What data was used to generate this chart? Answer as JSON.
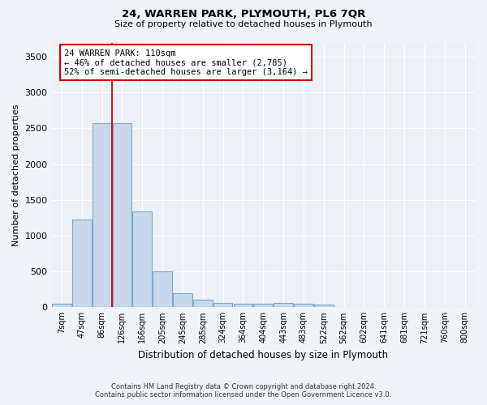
{
  "title": "24, WARREN PARK, PLYMOUTH, PL6 7QR",
  "subtitle": "Size of property relative to detached houses in Plymouth",
  "xlabel": "Distribution of detached houses by size in Plymouth",
  "ylabel": "Number of detached properties",
  "bar_color": "#c8d8ea",
  "bar_edge_color": "#7aaac8",
  "categories": [
    "7sqm",
    "47sqm",
    "86sqm",
    "126sqm",
    "166sqm",
    "205sqm",
    "245sqm",
    "285sqm",
    "324sqm",
    "364sqm",
    "404sqm",
    "443sqm",
    "483sqm",
    "522sqm",
    "562sqm",
    "602sqm",
    "641sqm",
    "681sqm",
    "721sqm",
    "760sqm",
    "800sqm"
  ],
  "values": [
    50,
    1230,
    2570,
    2575,
    1340,
    500,
    195,
    105,
    55,
    50,
    50,
    55,
    50,
    40,
    5,
    5,
    5,
    5,
    5,
    5,
    5
  ],
  "ylim": [
    0,
    3700
  ],
  "yticks": [
    0,
    500,
    1000,
    1500,
    2000,
    2500,
    3000,
    3500
  ],
  "property_line_x": 2.5,
  "annotation_text": "24 WARREN PARK: 110sqm\n← 46% of detached houses are smaller (2,785)\n52% of semi-detached houses are larger (3,164) →",
  "annotation_box_color": "#ffffff",
  "annotation_box_edge_color": "#cc0000",
  "vline_color": "#cc0000",
  "footer_line1": "Contains HM Land Registry data © Crown copyright and database right 2024.",
  "footer_line2": "Contains public sector information licensed under the Open Government Licence v3.0.",
  "bg_color": "#f0f4f8",
  "plot_bg_color": "#edf1f7",
  "grid_color": "#ffffff"
}
